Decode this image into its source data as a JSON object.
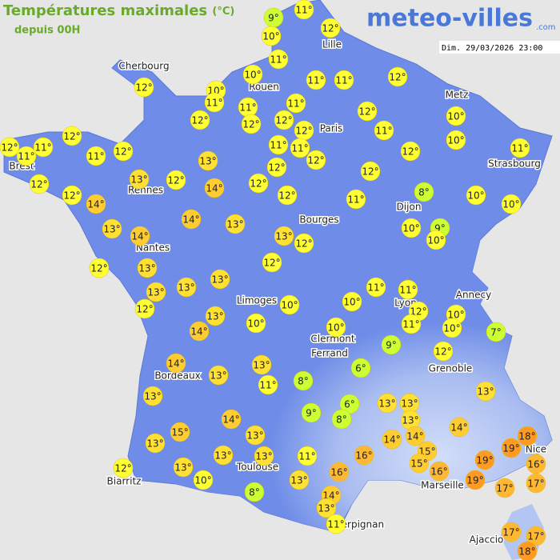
{
  "header": {
    "title": "Températures maximales",
    "unit": "(°C)",
    "subtitle": "depuis 00H",
    "logo": "meteo-villes",
    "logo_suffix": ".com",
    "date": "Dim. 29/03/2026 23:00"
  },
  "cities": [
    "Cherbourg",
    "Lille",
    "Rouen",
    "Paris",
    "Metz",
    "Brest",
    "Strasbourg",
    "Rennes",
    "Dijon",
    "Bourges",
    "Nantes",
    "Annecy",
    "Lyon",
    "Limoges",
    "Clermont",
    "Ferrand",
    "Grenoble",
    "Bordeaux",
    "Nice",
    "Toulouse",
    "Marseille",
    "Biarritz",
    "Perpignan",
    "Ajaccio"
  ],
  "markers": [
    {
      "value": 9,
      "label": "9°"
    },
    {
      "value": 11,
      "label": "11°"
    },
    {
      "value": 10,
      "label": "10°"
    },
    {
      "value": 12,
      "label": "12°"
    },
    {
      "value": 11,
      "label": "11°"
    },
    {
      "value": 12,
      "label": "12°"
    },
    {
      "value": 10,
      "label": "10°"
    },
    {
      "value": 10,
      "label": "10°"
    },
    {
      "value": 11,
      "label": "11°"
    },
    {
      "value": 11,
      "label": "11°"
    },
    {
      "value": 11,
      "label": "11°"
    },
    {
      "value": 11,
      "label": "11°"
    },
    {
      "value": 12,
      "label": "12°"
    },
    {
      "value": 11,
      "label": "11°"
    },
    {
      "value": 12,
      "label": "12°"
    },
    {
      "value": 12,
      "label": "12°"
    },
    {
      "value": 12,
      "label": "12°"
    },
    {
      "value": 12,
      "label": "12°"
    },
    {
      "value": 12,
      "label": "12°"
    },
    {
      "value": 10,
      "label": "10°"
    },
    {
      "value": 12,
      "label": "12°"
    },
    {
      "value": 12,
      "label": "12°"
    },
    {
      "value": 11,
      "label": "11°"
    },
    {
      "value": 11,
      "label": "11°"
    },
    {
      "value": 11,
      "label": "11°"
    },
    {
      "value": 12,
      "label": "12°"
    },
    {
      "value": 11,
      "label": "11°"
    },
    {
      "value": 11,
      "label": "11°"
    },
    {
      "value": 12,
      "label": "12°"
    },
    {
      "value": 11,
      "label": "11°"
    },
    {
      "value": 10,
      "label": "10°"
    },
    {
      "value": 12,
      "label": "12°"
    },
    {
      "value": 11,
      "label": "11°"
    },
    {
      "value": 13,
      "label": "13°"
    },
    {
      "value": 12,
      "label": "12°"
    },
    {
      "value": 12,
      "label": "12°"
    },
    {
      "value": 13,
      "label": "13°"
    },
    {
      "value": 12,
      "label": "12°"
    },
    {
      "value": 14,
      "label": "14°"
    },
    {
      "value": 12,
      "label": "12°"
    },
    {
      "value": 12,
      "label": "12°"
    },
    {
      "value": 12,
      "label": "12°"
    },
    {
      "value": 12,
      "label": "12°"
    },
    {
      "value": 11,
      "label": "11°"
    },
    {
      "value": 8,
      "label": "8°"
    },
    {
      "value": 10,
      "label": "10°"
    },
    {
      "value": 10,
      "label": "10°"
    },
    {
      "value": 14,
      "label": "14°"
    },
    {
      "value": 14,
      "label": "14°"
    },
    {
      "value": 13,
      "label": "13°"
    },
    {
      "value": 13,
      "label": "13°"
    },
    {
      "value": 14,
      "label": "14°"
    },
    {
      "value": 13,
      "label": "13°"
    },
    {
      "value": 12,
      "label": "12°"
    },
    {
      "value": 10,
      "label": "10°"
    },
    {
      "value": 9,
      "label": "9°"
    },
    {
      "value": 10,
      "label": "10°"
    },
    {
      "value": 12,
      "label": "12°"
    },
    {
      "value": 13,
      "label": "13°"
    },
    {
      "value": 12,
      "label": "12°"
    },
    {
      "value": 13,
      "label": "13°"
    },
    {
      "value": 13,
      "label": "13°"
    },
    {
      "value": 13,
      "label": "13°"
    },
    {
      "value": 11,
      "label": "11°"
    },
    {
      "value": 11,
      "label": "11°"
    },
    {
      "value": 12,
      "label": "12°"
    },
    {
      "value": 10,
      "label": "10°"
    },
    {
      "value": 10,
      "label": "10°"
    },
    {
      "value": 12,
      "label": "12°"
    },
    {
      "value": 10,
      "label": "10°"
    },
    {
      "value": 13,
      "label": "13°"
    },
    {
      "value": 14,
      "label": "14°"
    },
    {
      "value": 10,
      "label": "10°"
    },
    {
      "value": 11,
      "label": "11°"
    },
    {
      "value": 10,
      "label": "10°"
    },
    {
      "value": 10,
      "label": "10°"
    },
    {
      "value": 7,
      "label": "7°"
    },
    {
      "value": 9,
      "label": "9°"
    },
    {
      "value": 12,
      "label": "12°"
    },
    {
      "value": 14,
      "label": "14°"
    },
    {
      "value": 13,
      "label": "13°"
    },
    {
      "value": 6,
      "label": "6°"
    },
    {
      "value": 13,
      "label": "13°"
    },
    {
      "value": 11,
      "label": "11°"
    },
    {
      "value": 8,
      "label": "8°"
    },
    {
      "value": 13,
      "label": "13°"
    },
    {
      "value": 13,
      "label": "13°"
    },
    {
      "value": 6,
      "label": "6°"
    },
    {
      "value": 13,
      "label": "13°"
    },
    {
      "value": 13,
      "label": "13°"
    },
    {
      "value": 9,
      "label": "9°"
    },
    {
      "value": 8,
      "label": "8°"
    },
    {
      "value": 14,
      "label": "14°"
    },
    {
      "value": 13,
      "label": "13°"
    },
    {
      "value": 14,
      "label": "14°"
    },
    {
      "value": 15,
      "label": "15°"
    },
    {
      "value": 13,
      "label": "13°"
    },
    {
      "value": 14,
      "label": "14°"
    },
    {
      "value": 14,
      "label": "14°"
    },
    {
      "value": 13,
      "label": "13°"
    },
    {
      "value": 18,
      "label": "18°"
    },
    {
      "value": 19,
      "label": "19°"
    },
    {
      "value": 13,
      "label": "13°"
    },
    {
      "value": 13,
      "label": "13°"
    },
    {
      "value": 11,
      "label": "11°"
    },
    {
      "value": 16,
      "label": "16°"
    },
    {
      "value": 15,
      "label": "15°"
    },
    {
      "value": 15,
      "label": "15°"
    },
    {
      "value": 19,
      "label": "19°"
    },
    {
      "value": 16,
      "label": "16°"
    },
    {
      "value": 12,
      "label": "12°"
    },
    {
      "value": 13,
      "label": "13°"
    },
    {
      "value": 16,
      "label": "16°"
    },
    {
      "value": 16,
      "label": "16°"
    },
    {
      "value": 10,
      "label": "10°"
    },
    {
      "value": 19,
      "label": "19°"
    },
    {
      "value": 17,
      "label": "17°"
    },
    {
      "value": 17,
      "label": "17°"
    },
    {
      "value": 13,
      "label": "13°"
    },
    {
      "value": 8,
      "label": "8°"
    },
    {
      "value": 14,
      "label": "14°"
    },
    {
      "value": 13,
      "label": "13°"
    },
    {
      "value": 11,
      "label": "11°"
    },
    {
      "value": 17,
      "label": "17°"
    },
    {
      "value": 17,
      "label": "17°"
    },
    {
      "value": 18,
      "label": "18°"
    }
  ]
}
